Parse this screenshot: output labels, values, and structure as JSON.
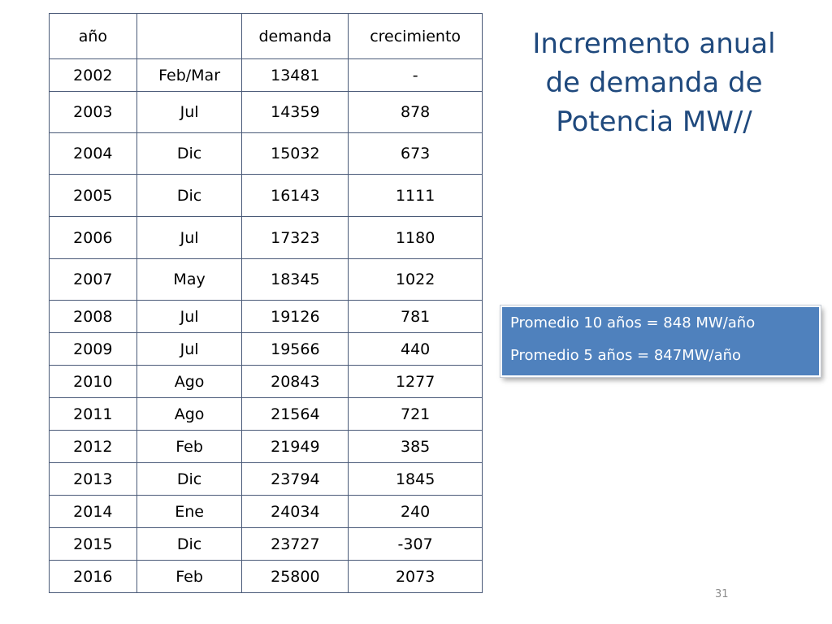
{
  "slide": {
    "title_lines": [
      "Incremento anual",
      "de demanda de",
      "Potencia MW//"
    ],
    "page_number": "31"
  },
  "table": {
    "headers": [
      "año",
      "",
      "demanda",
      "crecimiento"
    ],
    "rows": [
      [
        "2002",
        "Feb/Mar",
        "13481",
        "-"
      ],
      [
        "2003",
        "Jul",
        "14359",
        "878"
      ],
      [
        "2004",
        "Dic",
        "15032",
        "673"
      ],
      [
        "2005",
        "Dic",
        "16143",
        "1111"
      ],
      [
        "2006",
        "Jul",
        "17323",
        "1180"
      ],
      [
        "2007",
        "May",
        "18345",
        "1022"
      ],
      [
        "2008",
        "Jul",
        "19126",
        "781"
      ],
      [
        "2009",
        "Jul",
        "19566",
        "440"
      ],
      [
        "2010",
        "Ago",
        "20843",
        "1277"
      ],
      [
        "2011",
        "Ago",
        "21564",
        "721"
      ],
      [
        "2012",
        "Feb",
        "21949",
        "385"
      ],
      [
        "2013",
        "Dic",
        "23794",
        "1845"
      ],
      [
        "2014",
        "Ene",
        "24034",
        "240"
      ],
      [
        "2015",
        "Dic",
        "23727",
        "-307"
      ],
      [
        "2016",
        "Feb",
        "25800",
        "2073"
      ]
    ]
  },
  "summary": {
    "lines": [
      "Promedio 10 años = 848 MW/año",
      "Promedio  5 años = 847MW/año"
    ]
  },
  "colors": {
    "title": "#1f497d",
    "summary_background": "#4f81bd",
    "table_border": "#4a5a78"
  }
}
